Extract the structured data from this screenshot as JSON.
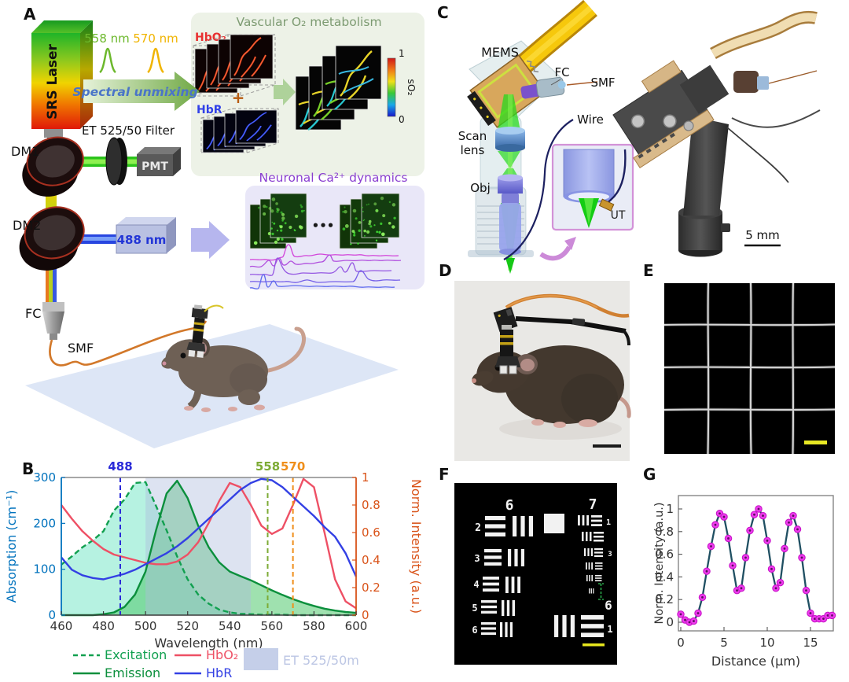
{
  "panelA": {
    "label": "A",
    "laser": "SRS Laser",
    "nm558": "558 nm",
    "nm570": "570 nm",
    "unmixing": "Spectral unmixing",
    "filter": "ET 525/50 Filter",
    "dm1": "DM1",
    "pmt": "PMT",
    "dm2": "DM2",
    "laser488": "488 nm",
    "fc": "FC",
    "smf": "SMF",
    "vascular_title": "Vascular O₂ metabolism",
    "hbo2": "HbO₂",
    "plus": "+",
    "hbr": "HbR",
    "cbar_top": "1",
    "cbar_bottom": "0",
    "cbar_label": "sO₂",
    "neuronal_title": "Neuronal Ca²⁺ dynamics",
    "dots": "•••"
  },
  "panelB": {
    "label": "B"
  },
  "panelC": {
    "label": "C",
    "mems": "MEMS",
    "fc": "FC",
    "smf": "SMF",
    "wire": "Wire",
    "scan_lens": [
      "Scan",
      "lens"
    ],
    "obj": "Obj",
    "ut": "UT",
    "scalebar": "5 mm"
  },
  "panelD": {
    "label": "D"
  },
  "panelE": {
    "label": "E"
  },
  "panelF": {
    "label": "F",
    "group_left": "6",
    "group_right": "7",
    "el_left": [
      "2",
      "3",
      "4",
      "5",
      "6"
    ],
    "el_right_top": "1",
    "el_right_mid": "3",
    "group_bottom": "6",
    "el_bottom": "1"
  },
  "panelG": {
    "label": "G"
  },
  "chart_data": [
    {
      "type": "line",
      "title": "",
      "xlabel": "Wavelength (nm)",
      "ylabel_left": "Absorption (cm⁻¹)",
      "ylabel_right": "Norm. Intensity (a.u.)",
      "xlim": [
        460,
        600
      ],
      "ylim_left": [
        0,
        300
      ],
      "ylim_right": [
        0,
        1
      ],
      "xticks": [
        460,
        480,
        500,
        520,
        540,
        560,
        580,
        600
      ],
      "yticks_left": [
        0,
        100,
        200,
        300
      ],
      "yticks_right": [
        0,
        0.2,
        0.4,
        0.6,
        0.8,
        1
      ],
      "axis_color_left": "#0072bd",
      "axis_color_right": "#d95319",
      "x": [
        460,
        465,
        470,
        475,
        480,
        485,
        490,
        495,
        500,
        505,
        510,
        515,
        520,
        525,
        530,
        535,
        540,
        545,
        550,
        555,
        560,
        565,
        570,
        575,
        580,
        585,
        590,
        595,
        600
      ],
      "series": [
        {
          "name": "Excitation",
          "axis": "left",
          "style": "dashed",
          "color": "#12a050",
          "fill": "rgba(110,230,195,0.5)",
          "values": [
            110,
            128,
            148,
            163,
            183,
            228,
            252,
            288,
            290,
            238,
            185,
            128,
            78,
            45,
            25,
            12,
            6,
            3,
            2,
            1,
            1,
            1,
            0,
            0,
            0,
            0,
            0,
            0,
            0
          ]
        },
        {
          "name": "Emission",
          "axis": "left",
          "style": "solid",
          "color": "#0b8f3c",
          "fill": "rgba(80,200,110,0.55)",
          "values": [
            0,
            0,
            0,
            0,
            2,
            6,
            18,
            45,
            95,
            185,
            265,
            293,
            255,
            195,
            148,
            115,
            95,
            85,
            76,
            65,
            54,
            44,
            35,
            27,
            20,
            14,
            10,
            7,
            5
          ]
        },
        {
          "name": "HbO₂",
          "axis": "right",
          "style": "solid",
          "color": "#ee5065",
          "values": [
            0.8,
            0.7,
            0.61,
            0.54,
            0.48,
            0.44,
            0.42,
            0.4,
            0.38,
            0.37,
            0.37,
            0.39,
            0.44,
            0.53,
            0.67,
            0.83,
            0.96,
            0.93,
            0.8,
            0.65,
            0.59,
            0.63,
            0.8,
            0.99,
            0.93,
            0.6,
            0.26,
            0.1,
            0.05
          ]
        },
        {
          "name": "HbR",
          "axis": "right",
          "style": "solid",
          "color": "#3340e4",
          "values": [
            0.42,
            0.33,
            0.29,
            0.27,
            0.26,
            0.28,
            0.3,
            0.33,
            0.37,
            0.41,
            0.45,
            0.5,
            0.56,
            0.63,
            0.7,
            0.77,
            0.84,
            0.91,
            0.96,
            0.99,
            0.98,
            0.93,
            0.86,
            0.79,
            0.72,
            0.64,
            0.57,
            0.45,
            0.28
          ]
        }
      ],
      "annotations": [
        {
          "x": 488,
          "label": "488",
          "color": "#2a2ad8"
        },
        {
          "x": 558,
          "label": "558",
          "color": "#7dab35"
        },
        {
          "x": 570,
          "label": "570",
          "color": "#ef8e1a"
        }
      ],
      "band": {
        "range": [
          500,
          550
        ],
        "label": "ET 525/50m",
        "color": "#aebdde",
        "label_color": "#bcc6e4",
        "patch_color": "#c5cfe9"
      },
      "legend_position": "below"
    },
    {
      "type": "line",
      "title": "",
      "xlabel": "Distance (μm)",
      "ylabel": "Norm. Intensity (a.u.)",
      "xlim": [
        0,
        17.6
      ],
      "ylim": [
        -0.08,
        1.12
      ],
      "xticks": [
        0,
        5,
        10,
        15
      ],
      "yticks": [
        0,
        0.2,
        0.4,
        0.6,
        0.8,
        1
      ],
      "line_color": "#1f4f62",
      "marker_color": "#ee3cee",
      "marker_edge": "#c714c7",
      "x": [
        0,
        0.5,
        1,
        1.5,
        2,
        2.5,
        3,
        3.5,
        4,
        4.5,
        5,
        5.5,
        6,
        6.5,
        7,
        7.5,
        8,
        8.5,
        9,
        9.5,
        10,
        10.5,
        11,
        11.5,
        12,
        12.5,
        13,
        13.5,
        14,
        14.5,
        15,
        15.5,
        16,
        16.5,
        17,
        17.5
      ],
      "values": [
        0.07,
        0.02,
        0.0,
        0.01,
        0.08,
        0.22,
        0.45,
        0.67,
        0.86,
        0.96,
        0.93,
        0.74,
        0.5,
        0.28,
        0.3,
        0.57,
        0.81,
        0.95,
        1.0,
        0.94,
        0.72,
        0.47,
        0.3,
        0.35,
        0.65,
        0.88,
        0.94,
        0.82,
        0.57,
        0.28,
        0.08,
        0.03,
        0.03,
        0.03,
        0.06,
        0.06
      ]
    }
  ]
}
